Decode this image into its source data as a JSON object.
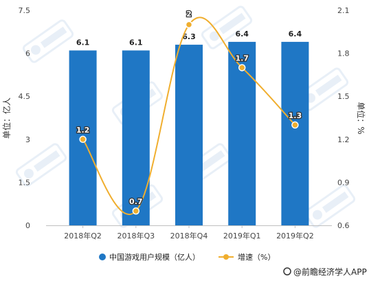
{
  "chart_data": {
    "type": "bar",
    "categories": [
      "2018年Q2",
      "2018年Q3",
      "2018年Q4",
      "2019年Q1",
      "2019年Q2"
    ],
    "series": [
      {
        "name": "中国游戏用户规模（亿人）",
        "type": "bar",
        "axis": "left",
        "values": [
          6.1,
          6.1,
          6.3,
          6.4,
          6.4
        ],
        "labels": [
          "6.1",
          "6.1",
          "6.3",
          "6.4",
          "6.4"
        ],
        "color": "#1f77c5"
      },
      {
        "name": "增速（%）",
        "type": "line",
        "axis": "right",
        "values": [
          1.2,
          0.7,
          2.0,
          1.7,
          1.3
        ],
        "labels": [
          "1.2",
          "0.7",
          "2",
          "1.7",
          "1.3"
        ],
        "color": "#f0ae2e"
      }
    ],
    "y_left": {
      "label": "单位：亿人",
      "ylim": [
        0,
        7.5
      ],
      "ticks": [
        "0",
        "1.5",
        "3",
        "4.5",
        "6",
        "7.5"
      ]
    },
    "y_right": {
      "label": "单位：%",
      "ylim": [
        0.6,
        2.1
      ],
      "ticks": [
        "0.6",
        "0.9",
        "1.2",
        "1.5",
        "1.8",
        "2.1"
      ]
    },
    "grid": false,
    "legend_position": "bottom"
  },
  "source": {
    "text": "@前瞻经济学人APP"
  },
  "colors": {
    "bar": "#1f77c5",
    "line": "#f0ae2e",
    "axis": "#bfbfbf"
  }
}
